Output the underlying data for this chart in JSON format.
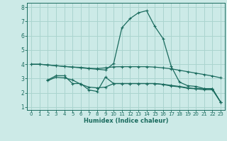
{
  "xlabel": "Humidex (Indice chaleur)",
  "bg_color": "#cceae7",
  "grid_color": "#aad4cf",
  "line_color": "#1a6b5e",
  "xlim": [
    -0.5,
    23.5
  ],
  "ylim": [
    0.8,
    8.3
  ],
  "xticks": [
    0,
    1,
    2,
    3,
    4,
    5,
    6,
    7,
    8,
    9,
    10,
    11,
    12,
    13,
    14,
    15,
    16,
    17,
    18,
    19,
    20,
    21,
    22,
    23
  ],
  "yticks": [
    1,
    2,
    3,
    4,
    5,
    6,
    7,
    8
  ],
  "line1_x": [
    0,
    1,
    2,
    3,
    4,
    5,
    6,
    7,
    8,
    9,
    10,
    11,
    12,
    13,
    14,
    15,
    16,
    17,
    18,
    19,
    20,
    21,
    22,
    23
  ],
  "line1_y": [
    4.0,
    4.0,
    3.95,
    3.9,
    3.85,
    3.8,
    3.78,
    3.72,
    3.7,
    3.75,
    3.82,
    3.83,
    3.83,
    3.83,
    3.83,
    3.8,
    3.75,
    3.68,
    3.58,
    3.48,
    3.38,
    3.28,
    3.18,
    3.05
  ],
  "line2_x": [
    2,
    3,
    4,
    5,
    6,
    7,
    8,
    9,
    10,
    11,
    12,
    13,
    14,
    15,
    16,
    17,
    18,
    19,
    20,
    21,
    22,
    23
  ],
  "line2_y": [
    2.9,
    3.2,
    3.2,
    2.65,
    2.65,
    2.2,
    2.1,
    3.1,
    2.65,
    2.65,
    2.65,
    2.65,
    2.65,
    2.65,
    2.6,
    2.52,
    2.45,
    2.35,
    2.3,
    2.28,
    2.28,
    1.35
  ],
  "line3_x": [
    2,
    3,
    4,
    5,
    6,
    7,
    8,
    9,
    10,
    11,
    12,
    13,
    14,
    15,
    16,
    17,
    18,
    19,
    20,
    21,
    22,
    23
  ],
  "line3_y": [
    2.85,
    3.1,
    3.05,
    2.9,
    2.6,
    2.4,
    2.35,
    2.4,
    2.65,
    2.65,
    2.65,
    2.65,
    2.65,
    2.65,
    2.58,
    2.48,
    2.42,
    2.32,
    2.28,
    2.22,
    2.22,
    1.35
  ],
  "line4_x": [
    0,
    1,
    2,
    3,
    4,
    5,
    6,
    7,
    8,
    9,
    10,
    11,
    12,
    13,
    14,
    15,
    16,
    17,
    18,
    19,
    20,
    21,
    22,
    23
  ],
  "line4_y": [
    4.0,
    4.0,
    3.95,
    3.9,
    3.85,
    3.8,
    3.75,
    3.7,
    3.65,
    3.6,
    4.05,
    6.55,
    7.2,
    7.6,
    7.75,
    6.65,
    5.8,
    3.85,
    2.75,
    2.5,
    2.45,
    2.3,
    2.3,
    1.35
  ],
  "xlabel_fontsize": 6.0,
  "tick_fontsize": 5.0,
  "linewidth": 0.9,
  "markersize": 2.5
}
